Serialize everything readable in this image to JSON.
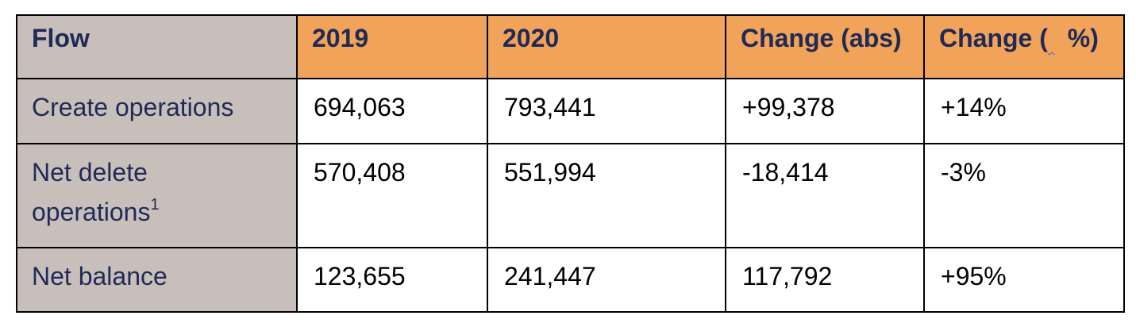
{
  "table": {
    "headers": {
      "flow": "Flow",
      "y2019": "2019",
      "y2020": "2020",
      "change_abs": "Change (abs)",
      "change_pct_prefix": "Change (",
      "change_pct_gap": " ",
      "change_pct_suffix": " %)"
    },
    "rows": [
      {
        "flow": "Create operations",
        "y2019": "694,063",
        "y2020": "793,441",
        "change_abs": "+99,378",
        "change_pct": "+14%"
      },
      {
        "flow_line1": "Net delete",
        "flow_line2": "operations",
        "footnote": "1",
        "y2019": "570,408",
        "y2020": "551,994",
        "change_abs": "-18,414",
        "change_pct": "-3%"
      },
      {
        "flow": "Net balance",
        "y2019": "123,655",
        "y2020": "241,447",
        "change_abs": "117,792",
        "change_pct": "+95%"
      }
    ]
  },
  "colors": {
    "header_bg": "#f2a35a",
    "first_col_bg": "#c8bfbb",
    "label_text": "#1f2a56",
    "value_text": "#000000",
    "border": "#000000"
  }
}
